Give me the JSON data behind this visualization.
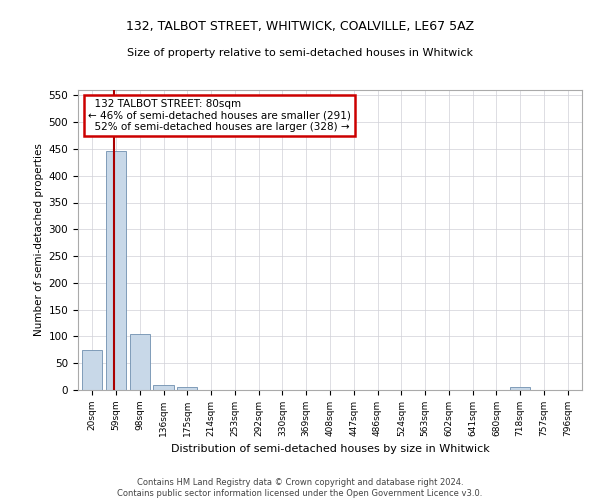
{
  "title": "132, TALBOT STREET, WHITWICK, COALVILLE, LE67 5AZ",
  "subtitle": "Size of property relative to semi-detached houses in Whitwick",
  "xlabel": "Distribution of semi-detached houses by size in Whitwick",
  "ylabel": "Number of semi-detached properties",
  "footnote": "Contains HM Land Registry data © Crown copyright and database right 2024.\nContains public sector information licensed under the Open Government Licence v3.0.",
  "bar_labels": [
    "20sqm",
    "59sqm",
    "98sqm",
    "136sqm",
    "175sqm",
    "214sqm",
    "253sqm",
    "292sqm",
    "330sqm",
    "369sqm",
    "408sqm",
    "447sqm",
    "486sqm",
    "524sqm",
    "563sqm",
    "602sqm",
    "641sqm",
    "680sqm",
    "718sqm",
    "757sqm",
    "796sqm"
  ],
  "bar_values": [
    75,
    447,
    104,
    10,
    5,
    0,
    0,
    0,
    0,
    0,
    0,
    0,
    0,
    0,
    0,
    0,
    0,
    0,
    5,
    0,
    0
  ],
  "bar_color": "#c8d8e8",
  "bar_edgecolor": "#7090b0",
  "property_bin_index": 1,
  "property_label": "132 TALBOT STREET: 80sqm",
  "smaller_pct": 46,
  "smaller_count": 291,
  "larger_pct": 52,
  "larger_count": 328,
  "vline_color": "#aa0000",
  "annotation_box_color": "#cc0000",
  "ylim": [
    0,
    560
  ],
  "yticks": [
    0,
    50,
    100,
    150,
    200,
    250,
    300,
    350,
    400,
    450,
    500,
    550
  ],
  "background_color": "#ffffff",
  "grid_color": "#d0d0d8"
}
